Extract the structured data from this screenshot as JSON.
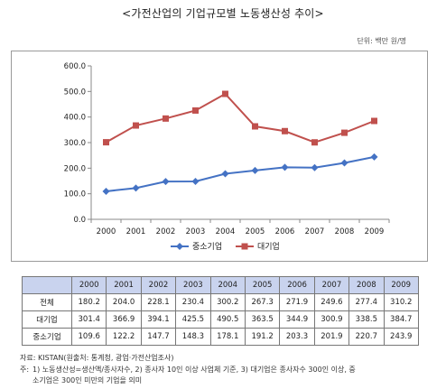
{
  "header": {
    "title": "<가전산업의 기업규모별 노동생산성 추이>",
    "unit": "단위: 백만 원/명"
  },
  "chart_data": {
    "type": "line",
    "x": [
      "2000",
      "2001",
      "2002",
      "2003",
      "2004",
      "2005",
      "2006",
      "2007",
      "2008",
      "2009"
    ],
    "ylim": [
      0,
      600
    ],
    "yticks": [
      "0.0",
      "100.0",
      "200.0",
      "300.0",
      "400.0",
      "500.0",
      "600.0"
    ],
    "ytick_values": [
      0,
      100,
      200,
      300,
      400,
      500,
      600
    ],
    "grid": false,
    "legend": "bottom",
    "series": [
      {
        "name": "중소기업",
        "color": "#4472c4",
        "marker": "diamond",
        "values": [
          109.6,
          122.2,
          147.7,
          148.3,
          178.1,
          191.2,
          203.3,
          201.9,
          220.7,
          243.9
        ]
      },
      {
        "name": "대기업",
        "color": "#c0504d",
        "marker": "square",
        "values": [
          301.4,
          366.9,
          394.1,
          425.5,
          490.5,
          363.5,
          344.9,
          300.9,
          338.5,
          384.7
        ]
      }
    ]
  },
  "table": {
    "columns": [
      "",
      "2000",
      "2001",
      "2002",
      "2003",
      "2004",
      "2005",
      "2006",
      "2007",
      "2008",
      "2009"
    ],
    "rows": [
      {
        "label": "전체",
        "values": [
          "180.2",
          "204.0",
          "228.1",
          "230.4",
          "300.2",
          "267.3",
          "271.9",
          "249.6",
          "277.4",
          "310.2"
        ]
      },
      {
        "label": "대기업",
        "values": [
          "301.4",
          "366.9",
          "394.1",
          "425.5",
          "490.5",
          "363.5",
          "344.9",
          "300.9",
          "338.5",
          "384.7"
        ]
      },
      {
        "label": "중소기업",
        "values": [
          "109.6",
          "122.2",
          "147.7",
          "148.3",
          "178.1",
          "191.2",
          "203.3",
          "201.9",
          "220.7",
          "243.9"
        ]
      }
    ]
  },
  "footer": {
    "source": "자료: KISTAN(원출처: 통계청, 광업·가전산업조사)",
    "note_label": "주:",
    "note_line1": "1) 노동생산성=생산액/종사자수, 2) 종사자 10인 이상 사업체 기준, 3) 대기업은 종사자수 300인 이상, 중",
    "note_line2": "소기업은 300인 미만의 기업을 의미"
  }
}
